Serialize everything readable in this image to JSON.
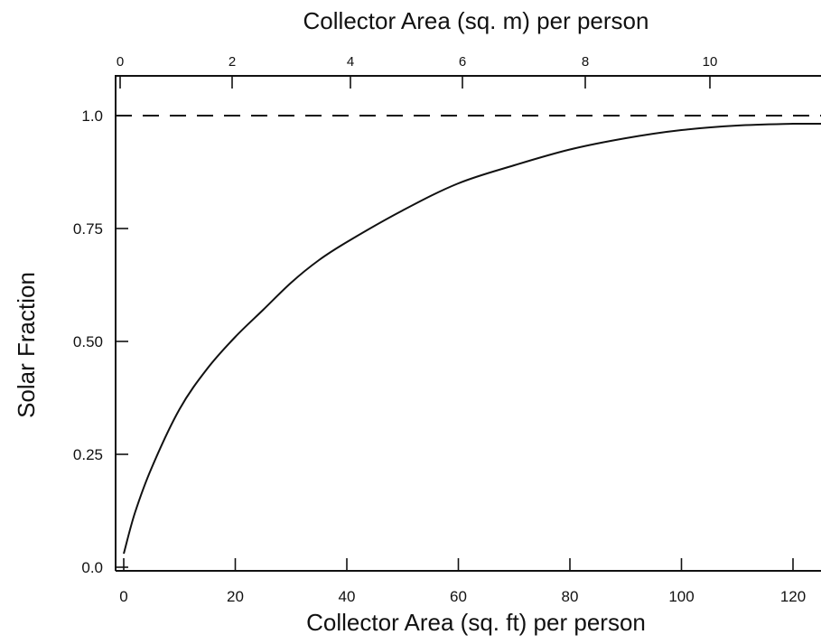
{
  "chart_data": {
    "type": "line",
    "title": "",
    "xlabel": "Collector Area (sq. ft) per person",
    "ylabel": "Solar Fraction",
    "x2label": "Collector Area (sq. m) per person",
    "xlim": [
      0,
      124
    ],
    "ylim": [
      0,
      1.1
    ],
    "x_ticks": [
      0,
      20,
      40,
      60,
      80,
      100,
      120
    ],
    "x_tick_labels": [
      "0",
      "20",
      "40",
      "60",
      "80",
      "100",
      "120"
    ],
    "y_ticks": [
      0,
      0.25,
      0.5,
      0.75,
      1.0
    ],
    "y_tick_labels": [
      "0.0",
      "0.25",
      "0.50",
      "0.75",
      "1.0"
    ],
    "x2_ticks": [
      0,
      2,
      4,
      6,
      8,
      10
    ],
    "x2_tick_labels": [
      "0",
      "2",
      "4",
      "6",
      "8",
      "10"
    ],
    "grid": false,
    "series": [
      {
        "style": "solid",
        "x": [
          0,
          2,
          5,
          10,
          15,
          20,
          25,
          30,
          35,
          40,
          50,
          60,
          70,
          80,
          90,
          100,
          110,
          120
        ],
        "y": [
          0.03,
          0.12,
          0.22,
          0.35,
          0.44,
          0.51,
          0.57,
          0.63,
          0.68,
          0.72,
          0.79,
          0.85,
          0.89,
          0.925,
          0.95,
          0.968,
          0.978,
          0.982
        ]
      },
      {
        "style": "dashed",
        "x": [
          0,
          124
        ],
        "y": [
          1.0,
          1.0
        ]
      }
    ]
  }
}
